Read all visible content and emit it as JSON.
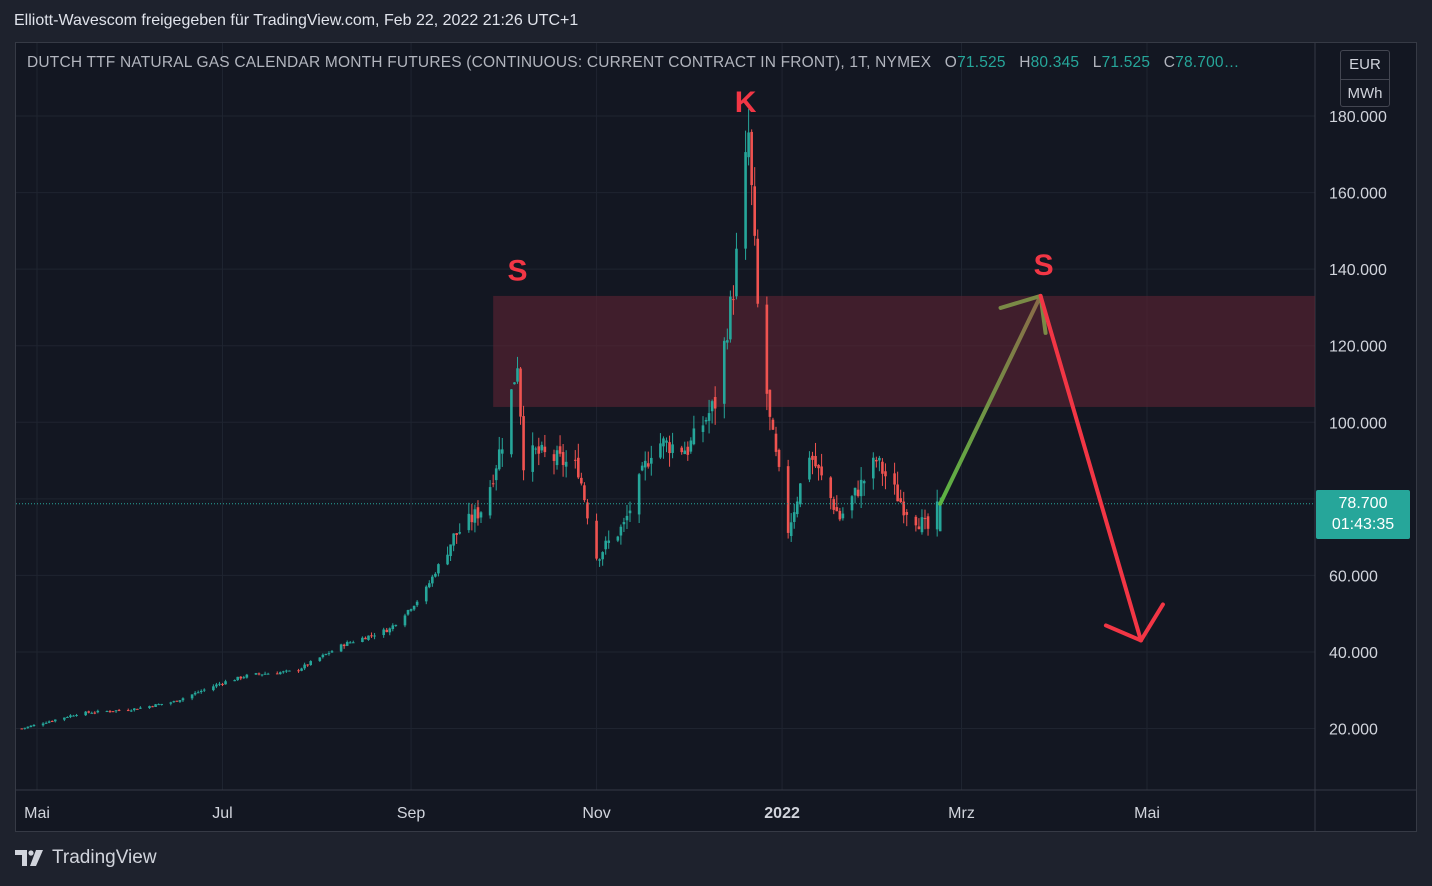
{
  "header": {
    "publisher_line": "Elliott-Wavescom freigegeben für TradingView.com, Feb 22, 2022 21:26 UTC+1"
  },
  "legend": {
    "symbol_text": "DUTCH TTF NATURAL GAS CALENDAR MONTH FUTURES (CONTINUOUS: CURRENT CONTRACT IN FRONT), 1T, NYMEX",
    "o_label": "O",
    "o_value": "71.525",
    "h_label": "H",
    "h_value": "80.345",
    "l_label": "L",
    "l_value": "71.525",
    "c_label": "C",
    "c_value": "78.700…"
  },
  "units": {
    "currency": "EUR",
    "unit": "MWh"
  },
  "last_price": {
    "value": "78.700",
    "countdown": "01:43:35"
  },
  "footer": {
    "brand": "TradingView"
  },
  "colors": {
    "up": "#26a69a",
    "down": "#ef5350",
    "background": "#131722",
    "zone": "#5c2432",
    "arrow_up": "#5bb543",
    "arrow_down": "#f23645",
    "annotation": "#f23645"
  },
  "chart_data": {
    "type": "candlestick",
    "y_ticks": [
      "180.000",
      "160.000",
      "140.000",
      "120.000",
      "100.000",
      "60.000",
      "40.000",
      "20.000"
    ],
    "y_tick_values": [
      180,
      160,
      140,
      120,
      100,
      60,
      40,
      20
    ],
    "x_ticks": [
      "Mai",
      "Jul",
      "Sep",
      "Nov",
      "2022",
      "Mrz",
      "Mai"
    ],
    "x_tick_dates": [
      "2021-05-01",
      "2021-07-01",
      "2021-09-01",
      "2021-11-01",
      "2022-01-01",
      "2022-03-01",
      "2022-05-01"
    ],
    "x_tick_bold": [
      false,
      false,
      false,
      false,
      true,
      false,
      false
    ],
    "close_series": {
      "start_date": "2021-04-26",
      "end_date": "2022-02-22",
      "anchors": [
        [
          "2021-04-26",
          20
        ],
        [
          "2021-05-15",
          24
        ],
        [
          "2021-06-01",
          25
        ],
        [
          "2021-06-15",
          27
        ],
        [
          "2021-07-01",
          32
        ],
        [
          "2021-07-10",
          34
        ],
        [
          "2021-07-25",
          35
        ],
        [
          "2021-08-10",
          42
        ],
        [
          "2021-08-25",
          46
        ],
        [
          "2021-09-05",
          55
        ],
        [
          "2021-09-15",
          70
        ],
        [
          "2021-09-25",
          78
        ],
        [
          "2021-10-01",
          95
        ],
        [
          "2021-10-06",
          116
        ],
        [
          "2021-10-08",
          90
        ],
        [
          "2021-10-12",
          92
        ],
        [
          "2021-10-20",
          90
        ],
        [
          "2021-10-26",
          88
        ],
        [
          "2021-11-01",
          65
        ],
        [
          "2021-11-10",
          73
        ],
        [
          "2021-11-20",
          95
        ],
        [
          "2021-12-01",
          93
        ],
        [
          "2021-12-10",
          105
        ],
        [
          "2021-12-16",
          135
        ],
        [
          "2021-12-21",
          175
        ],
        [
          "2021-12-24",
          130
        ],
        [
          "2021-12-28",
          100
        ],
        [
          "2022-01-03",
          72
        ],
        [
          "2022-01-10",
          92
        ],
        [
          "2022-01-20",
          75
        ],
        [
          "2022-02-01",
          90
        ],
        [
          "2022-02-10",
          78
        ],
        [
          "2022-02-18",
          72
        ],
        [
          "2022-02-22",
          78.7
        ]
      ]
    },
    "last_ohlc": {
      "open": 71.525,
      "high": 80.345,
      "low": 71.525,
      "close": 78.7
    },
    "resistance_zone": {
      "from_date": "2021-09-28",
      "y_low": 104,
      "y_high": 133
    },
    "annotations": [
      {
        "text": "S",
        "date": "2021-10-06",
        "y": 137
      },
      {
        "text": "K",
        "date": "2021-12-20",
        "y": 181
      },
      {
        "text": "S",
        "date": "2022-03-28",
        "y": 138.5
      }
    ],
    "projection": {
      "up_leg": {
        "from": [
          "2022-02-22",
          78.7
        ],
        "to": [
          "2022-03-27",
          133
        ]
      },
      "down_leg": {
        "from": [
          "2022-03-27",
          133
        ],
        "to": [
          "2022-04-29",
          43
        ]
      }
    }
  }
}
